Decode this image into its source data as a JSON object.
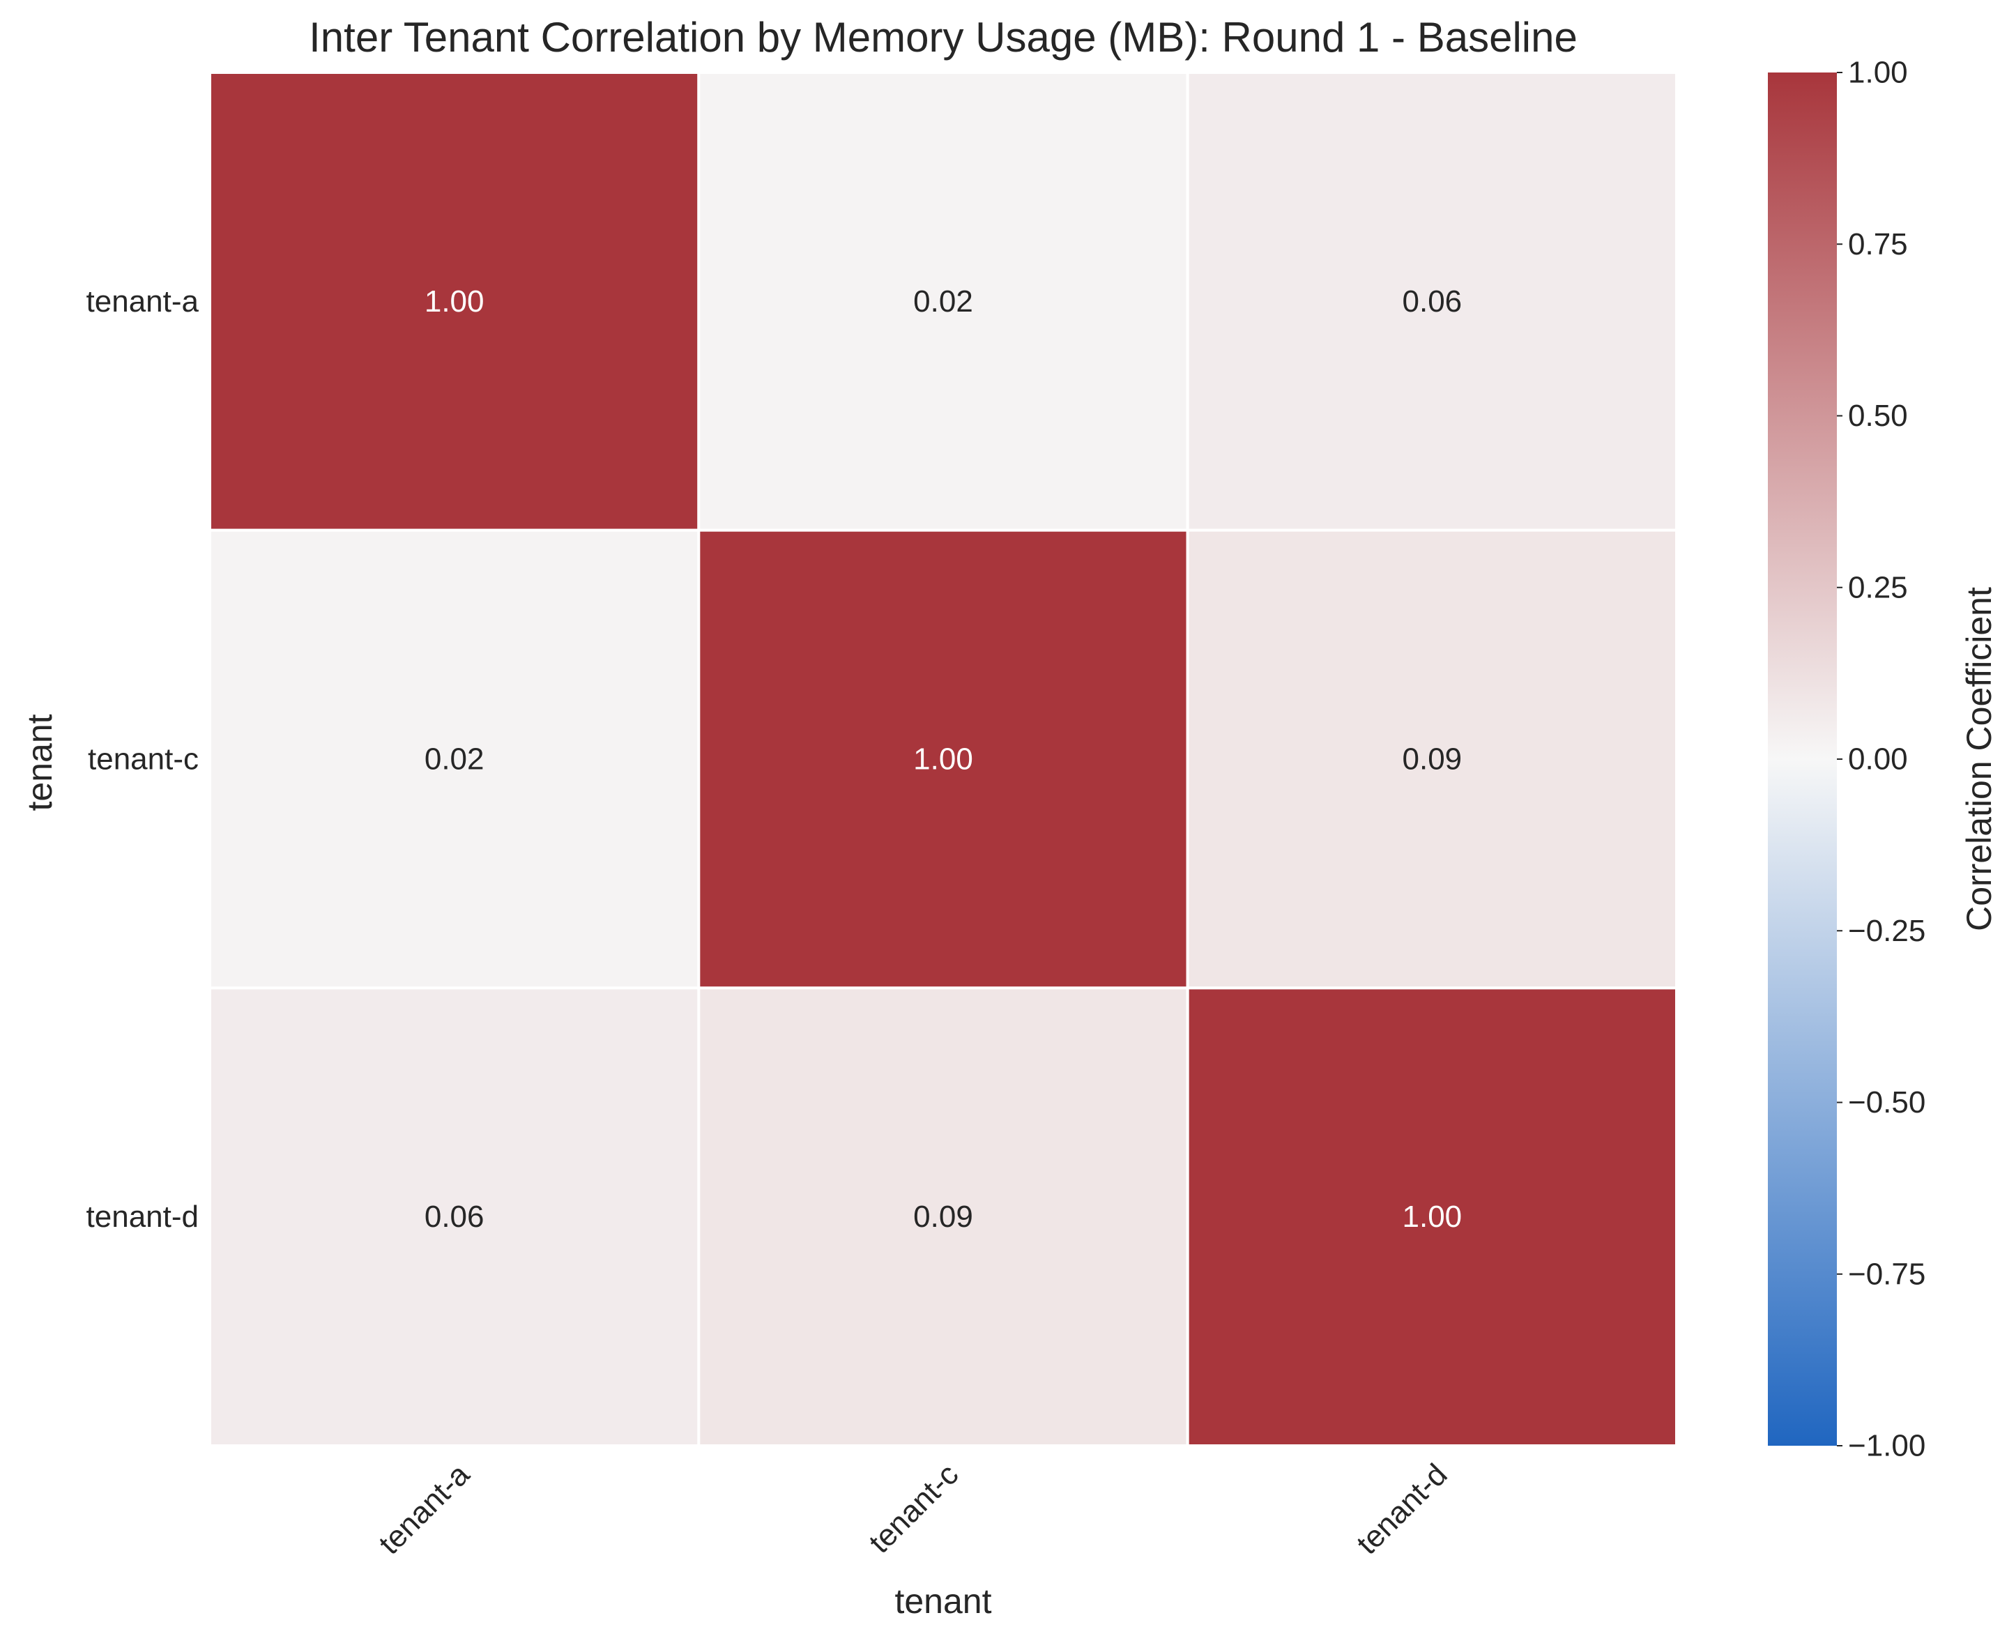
{
  "chart_data": {
    "type": "heatmap",
    "title": "Inter Tenant Correlation by Memory Usage (MB): Round 1 - Baseline",
    "xlabel": "tenant",
    "ylabel": "tenant",
    "x_categories": [
      "tenant-a",
      "tenant-c",
      "tenant-d"
    ],
    "y_categories": [
      "tenant-a",
      "tenant-c",
      "tenant-d"
    ],
    "values": [
      [
        1.0,
        0.02,
        0.06
      ],
      [
        0.02,
        1.0,
        0.09
      ],
      [
        0.06,
        0.09,
        1.0
      ]
    ],
    "cell_labels": [
      [
        "1.00",
        "0.02",
        "0.06"
      ],
      [
        "0.02",
        "1.00",
        "0.09"
      ],
      [
        "0.06",
        "0.09",
        "1.00"
      ]
    ],
    "colorbar": {
      "label": "Correlation Coefficient",
      "range": [
        -1.0,
        1.0
      ],
      "ticks": [
        1.0,
        0.75,
        0.5,
        0.25,
        0.0,
        -0.25,
        -0.5,
        -0.75,
        -1.0
      ],
      "tick_labels": [
        "1.00",
        "0.75",
        "0.50",
        "0.25",
        "0.00",
        "−0.25",
        "−0.50",
        "−0.75",
        "−1.00"
      ],
      "colormap": "diverging blue-white-red",
      "color_stops": [
        "#2066c0",
        "#f7f7f7",
        "#a8363c"
      ]
    },
    "grid": false,
    "legend": "colorbar right"
  }
}
